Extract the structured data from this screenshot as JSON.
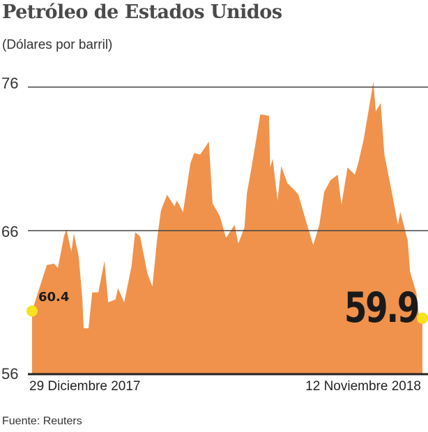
{
  "chart_data": {
    "type": "area",
    "title": "Petróleo de Estados Unidos",
    "subtitle": "(Dólares por barril)",
    "source": "Fuente: Reuters",
    "ylim": [
      56,
      76
    ],
    "yticks": [
      "76",
      "66",
      "56"
    ],
    "xtick_labels": [
      "29 Diciembre 2017",
      "12 Noviembre 2018"
    ],
    "grid": true,
    "colors": {
      "fill": "#F0924B",
      "marker": "#F7E21B",
      "grid": "#444444"
    },
    "start_label": "60.4",
    "end_label": "59.9",
    "points": [
      [
        "2017-12-29",
        60.4
      ],
      [
        "2018-01-04",
        62.0
      ],
      [
        "2018-01-10",
        63.6
      ],
      [
        "2018-01-16",
        63.7
      ],
      [
        "2018-01-19",
        63.4
      ],
      [
        "2018-01-24",
        65.6
      ],
      [
        "2018-01-26",
        66.1
      ],
      [
        "2018-01-30",
        64.5
      ],
      [
        "2018-02-01",
        65.8
      ],
      [
        "2018-02-05",
        64.2
      ],
      [
        "2018-02-08",
        61.2
      ],
      [
        "2018-02-09",
        59.2
      ],
      [
        "2018-02-13",
        59.2
      ],
      [
        "2018-02-16",
        61.7
      ],
      [
        "2018-02-21",
        61.7
      ],
      [
        "2018-02-26",
        63.9
      ],
      [
        "2018-03-01",
        61.0
      ],
      [
        "2018-03-07",
        61.2
      ],
      [
        "2018-03-09",
        62.0
      ],
      [
        "2018-03-14",
        61.0
      ],
      [
        "2018-03-20",
        63.5
      ],
      [
        "2018-03-23",
        65.9
      ],
      [
        "2018-03-27",
        65.6
      ],
      [
        "2018-04-02",
        63.0
      ],
      [
        "2018-04-06",
        62.1
      ],
      [
        "2018-04-10",
        65.5
      ],
      [
        "2018-04-13",
        67.4
      ],
      [
        "2018-04-18",
        68.5
      ],
      [
        "2018-04-24",
        67.7
      ],
      [
        "2018-04-26",
        68.1
      ],
      [
        "2018-05-01",
        67.3
      ],
      [
        "2018-05-07",
        70.7
      ],
      [
        "2018-05-10",
        71.4
      ],
      [
        "2018-05-15",
        71.3
      ],
      [
        "2018-05-22",
        72.2
      ],
      [
        "2018-05-25",
        67.9
      ],
      [
        "2018-05-31",
        67.0
      ],
      [
        "2018-06-05",
        65.5
      ],
      [
        "2018-06-12",
        66.4
      ],
      [
        "2018-06-15",
        65.1
      ],
      [
        "2018-06-20",
        66.2
      ],
      [
        "2018-06-22",
        68.6
      ],
      [
        "2018-06-26",
        70.5
      ],
      [
        "2018-07-03",
        74.1
      ],
      [
        "2018-07-10",
        74.0
      ],
      [
        "2018-07-11",
        70.4
      ],
      [
        "2018-07-13",
        71.0
      ],
      [
        "2018-07-17",
        68.1
      ],
      [
        "2018-07-20",
        70.5
      ],
      [
        "2018-07-25",
        69.3
      ],
      [
        "2018-07-31",
        68.8
      ],
      [
        "2018-08-03",
        68.5
      ],
      [
        "2018-08-08",
        67.0
      ],
      [
        "2018-08-15",
        65.0
      ],
      [
        "2018-08-20",
        66.4
      ],
      [
        "2018-08-24",
        68.7
      ],
      [
        "2018-08-29",
        69.5
      ],
      [
        "2018-09-04",
        69.9
      ],
      [
        "2018-09-07",
        67.8
      ],
      [
        "2018-09-12",
        70.4
      ],
      [
        "2018-09-18",
        69.9
      ],
      [
        "2018-09-21",
        70.8
      ],
      [
        "2018-09-25",
        72.3
      ],
      [
        "2018-10-01",
        75.3
      ],
      [
        "2018-10-03",
        76.4
      ],
      [
        "2018-10-05",
        74.3
      ],
      [
        "2018-10-09",
        74.9
      ],
      [
        "2018-10-12",
        71.3
      ],
      [
        "2018-10-18",
        68.7
      ],
      [
        "2018-10-23",
        66.4
      ],
      [
        "2018-10-25",
        67.3
      ],
      [
        "2018-10-31",
        65.3
      ],
      [
        "2018-11-02",
        63.1
      ],
      [
        "2018-11-07",
        61.7
      ],
      [
        "2018-11-09",
        60.2
      ],
      [
        "2018-11-12",
        59.9
      ]
    ]
  }
}
